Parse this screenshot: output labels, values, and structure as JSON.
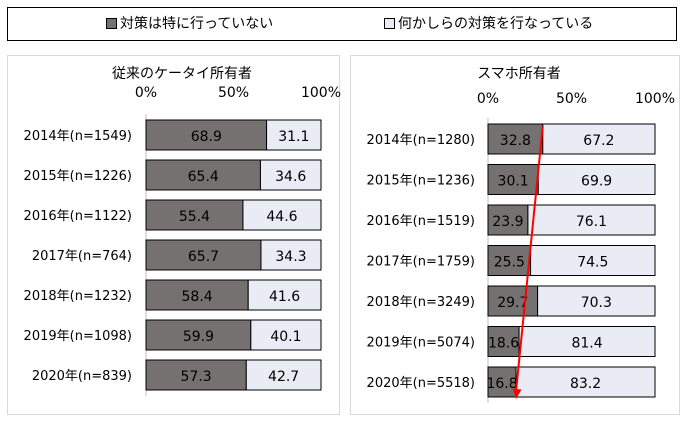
{
  "legend": {
    "items": [
      {
        "label": "対策は特に行っていない",
        "color": "#767171"
      },
      {
        "label": "何かしらの対策を行なっている",
        "color": "#e9ecf5"
      }
    ]
  },
  "chart_data": [
    {
      "type": "bar",
      "stacked": true,
      "orientation": "horizontal",
      "title": "従来のケータイ所有者",
      "xlim": [
        0,
        100
      ],
      "x_ticks": [
        "0%",
        "50%",
        "100%"
      ],
      "categories": [
        "2014年(n=1549)",
        "2015年(n=1226)",
        "2016年(n=1122)",
        "2017年(n=764)",
        "2018年(n=1232)",
        "2019年(n=1098)",
        "2020年(n=839)"
      ],
      "series": [
        {
          "name": "対策は特に行っていない",
          "color": "#767171",
          "values": [
            68.9,
            65.4,
            55.4,
            65.7,
            58.4,
            59.9,
            57.3
          ]
        },
        {
          "name": "何かしらの対策を行なっている",
          "color": "#e9ecf5",
          "values": [
            31.1,
            34.6,
            44.6,
            34.3,
            41.6,
            40.1,
            42.7
          ]
        }
      ]
    },
    {
      "type": "bar",
      "stacked": true,
      "orientation": "horizontal",
      "title": "スマホ所有者",
      "xlim": [
        0,
        100
      ],
      "x_ticks": [
        "0%",
        "50%",
        "100%"
      ],
      "categories": [
        "2014年(n=1280)",
        "2015年(n=1236)",
        "2016年(n=1519)",
        "2017年(n=1759)",
        "2018年(n=3249)",
        "2019年(n=5074)",
        "2020年(n=5518)"
      ],
      "series": [
        {
          "name": "対策は特に行っていない",
          "color": "#767171",
          "values": [
            32.8,
            30.1,
            23.9,
            25.5,
            29.7,
            18.6,
            16.8
          ]
        },
        {
          "name": "何かしらの対策を行なっている",
          "color": "#e9ecf5",
          "values": [
            67.2,
            69.9,
            76.1,
            74.5,
            70.3,
            81.4,
            83.2
          ]
        }
      ],
      "annotation": {
        "type": "arrow",
        "color": "#ff0000",
        "from_category": "2014年(n=1280)",
        "to_category": "2020年(n=5518)",
        "from_value": 32.8,
        "to_value": 16.8
      }
    }
  ]
}
